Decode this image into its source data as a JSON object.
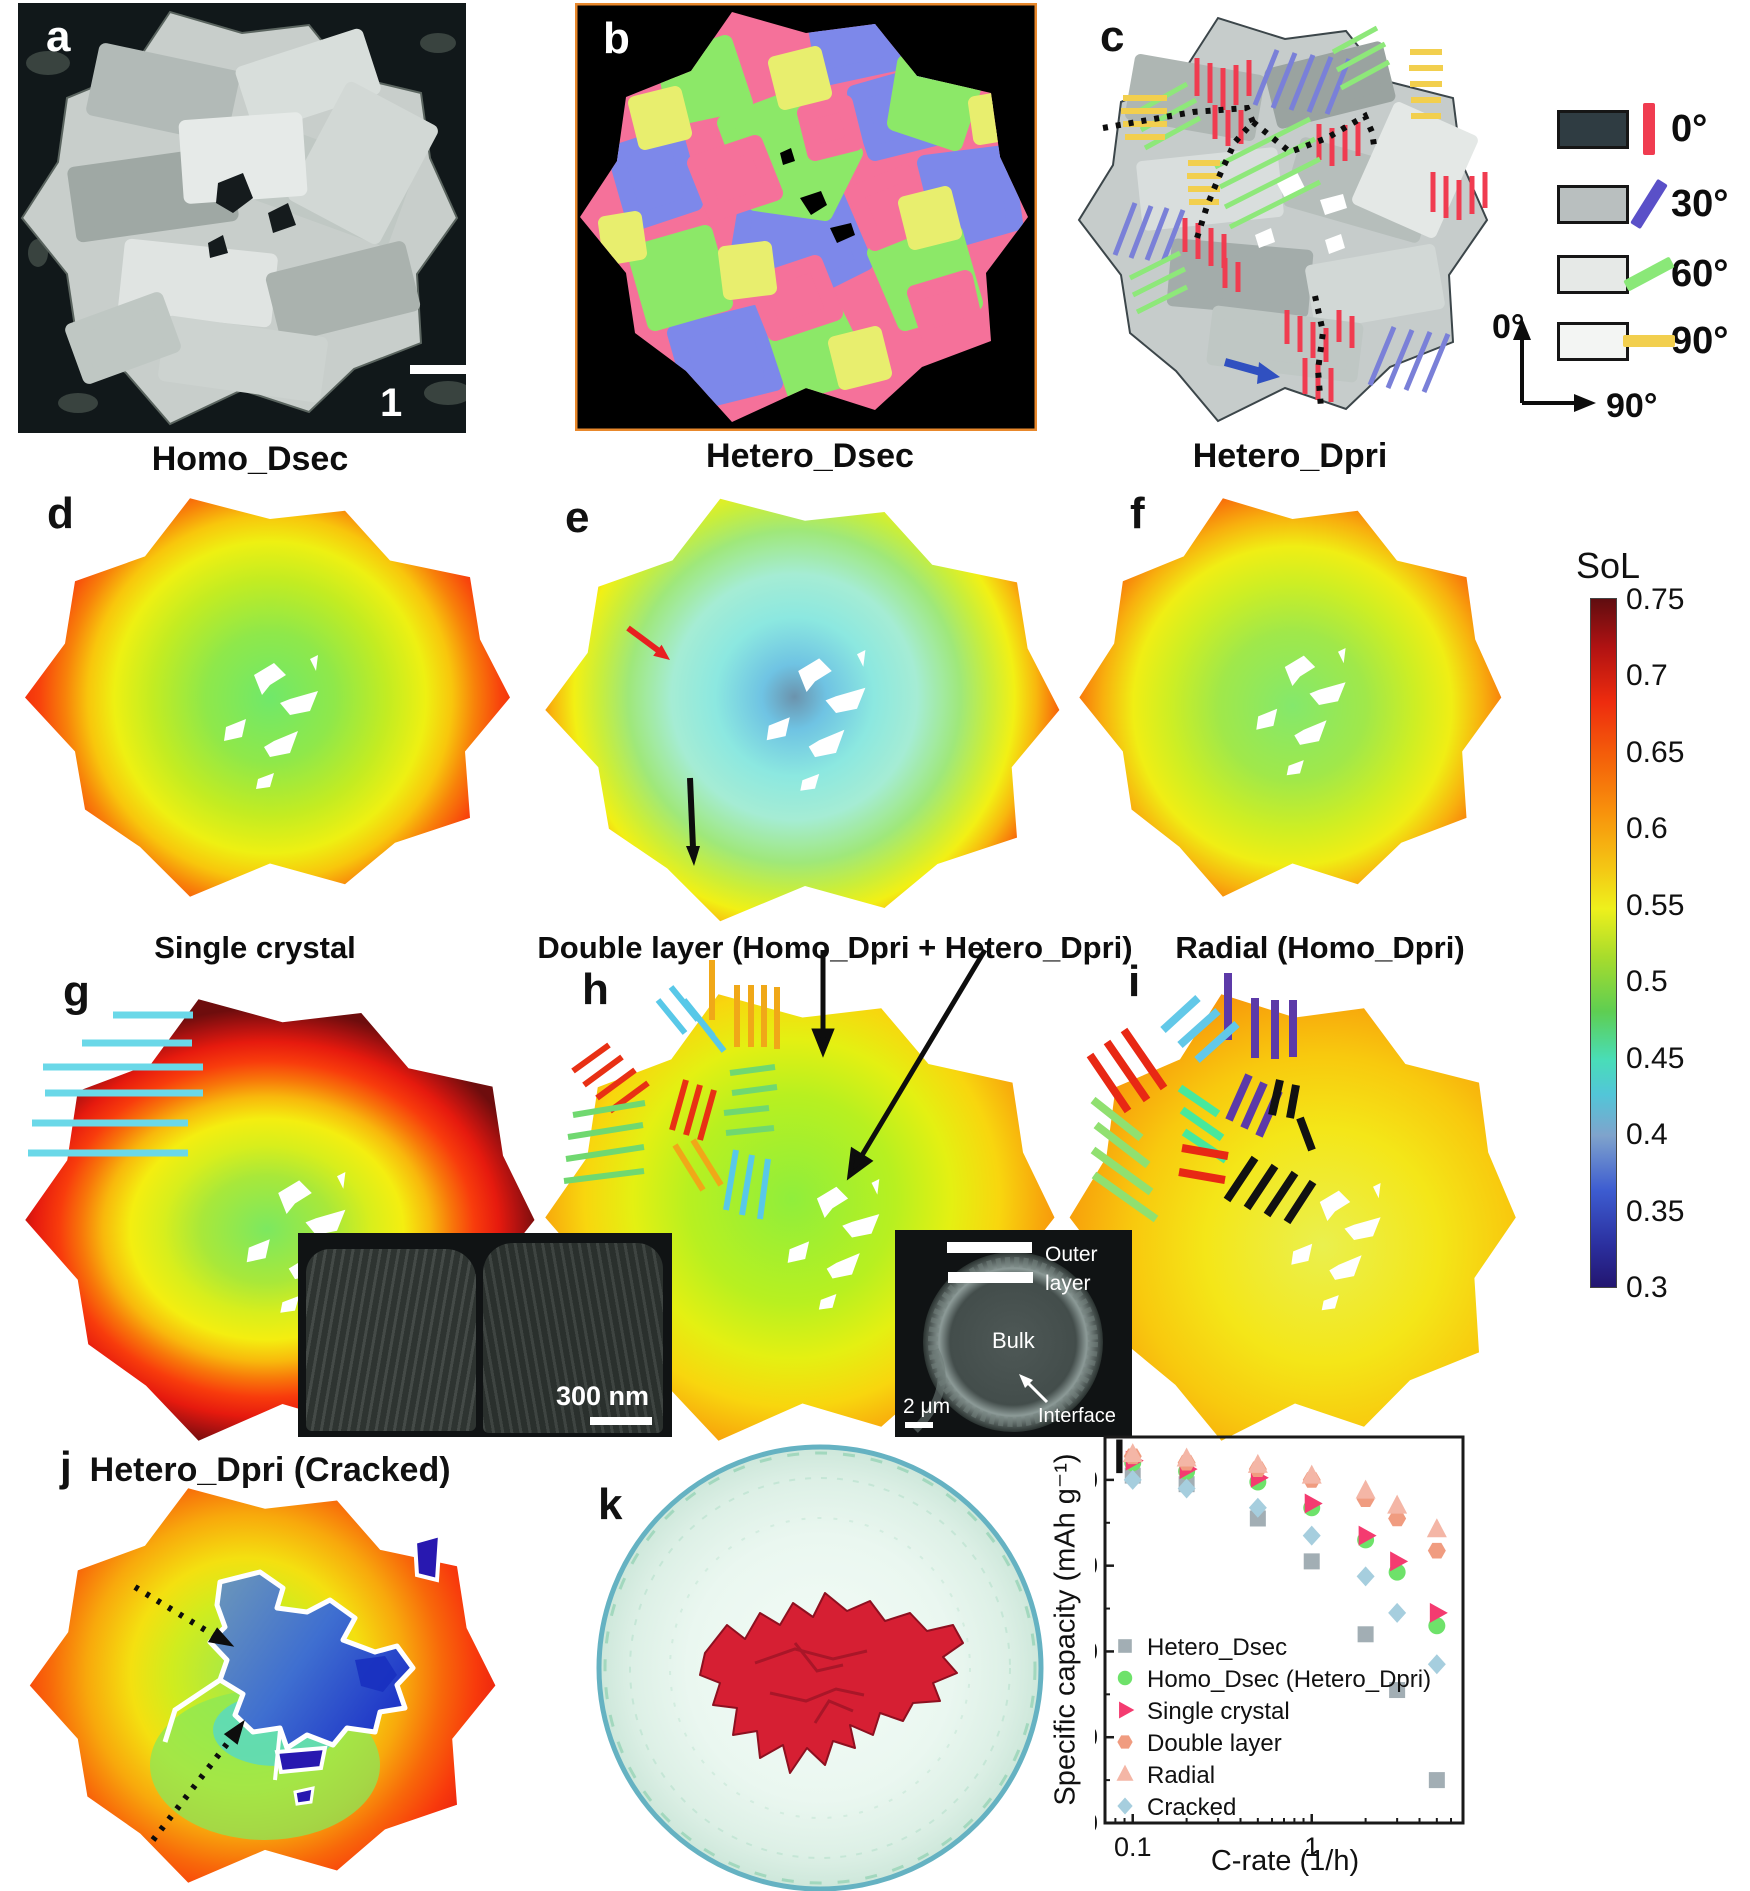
{
  "panels": {
    "a": {
      "letter": "a",
      "scale_bar": "1 μm"
    },
    "b": {
      "letter": "b"
    },
    "c": {
      "letter": "c"
    },
    "d": {
      "letter": "d",
      "label": "Homo_Dsec"
    },
    "e": {
      "letter": "e",
      "label": "Hetero_Dsec"
    },
    "f": {
      "letter": "f",
      "label": "Hetero_Dpri"
    },
    "g": {
      "letter": "g",
      "label": "Single crystal"
    },
    "h": {
      "letter": "h",
      "label": "Double layer (Homo_Dpri + Hetero_Dpri)"
    },
    "i": {
      "letter": "i",
      "label": "Radial (Homo_Dpri)"
    },
    "j": {
      "letter": "j",
      "label": "Hetero_Dpri (Cracked)"
    },
    "k": {
      "letter": "k"
    },
    "l": {
      "letter": "l"
    }
  },
  "orientation_legend": {
    "items": [
      {
        "angle": "0°",
        "bar_color": "#f03c50"
      },
      {
        "angle": "30°",
        "bar_color": "#5a50c8"
      },
      {
        "angle": "60°",
        "bar_color": "#8ae878"
      },
      {
        "angle": "90°",
        "bar_color": "#f2cf4e"
      }
    ],
    "axis": {
      "up_label": "0°",
      "right_label": "90°"
    }
  },
  "colorbar": {
    "title": "SoL",
    "ticks": [
      "0.75",
      "0.7",
      "0.65",
      "0.6",
      "0.55",
      "0.5",
      "0.45",
      "0.4",
      "0.35",
      "0.3"
    ]
  },
  "inset_g": {
    "scale_bar": "300 nm"
  },
  "inset_h": {
    "outer_layer": "Outer layer",
    "bulk": "Bulk",
    "interface": "Interface",
    "scale_bar": "2 μm"
  },
  "chart_data": {
    "type": "scatter",
    "title": "",
    "xlabel": "C-rate (1/h)",
    "ylabel": "Specific capacity (mAh g⁻¹)",
    "x_scale": "log",
    "xlim": [
      0.07,
      7
    ],
    "ylim": [
      100,
      190
    ],
    "yticks": [
      100,
      120,
      140,
      160,
      180
    ],
    "xticks_labeled": [
      0.1,
      1
    ],
    "xticks_minor": [
      0.08,
      0.09,
      0.2,
      0.3,
      0.4,
      0.5,
      0.6,
      0.7,
      0.8,
      0.9,
      2,
      3,
      4,
      5,
      6
    ],
    "grid": false,
    "legend_position": "lower-left",
    "x": [
      0.1,
      0.2,
      0.5,
      1,
      2,
      3,
      5
    ],
    "series": [
      {
        "name": "Hetero_Dsec",
        "marker": "square",
        "color": "#a2aeb4",
        "values": [
          181,
          179,
          171,
          161,
          144,
          131,
          110
        ]
      },
      {
        "name": "Homo_Dsec (Hetero_Dpri)",
        "marker": "circle",
        "color": "#6ee26a",
        "values": [
          184,
          182,
          179.5,
          173.5,
          166,
          158.5,
          146
        ]
      },
      {
        "name": "Single crystal",
        "marker": "triangle-right",
        "color": "#f43b70",
        "values": [
          184.5,
          182.5,
          180.5,
          174.5,
          167,
          161,
          149
        ]
      },
      {
        "name": "Double layer",
        "marker": "hexagon",
        "color": "#f09c80",
        "values": [
          185.5,
          184,
          182.5,
          180,
          175.5,
          171,
          163.5
        ]
      },
      {
        "name": "Radial",
        "marker": "triangle-up",
        "color": "#f4b6a6",
        "values": [
          186,
          185,
          183.5,
          181,
          177.5,
          174,
          168.5
        ]
      },
      {
        "name": "Cracked",
        "marker": "diamond",
        "color": "#a6cede",
        "values": [
          180,
          178,
          173.5,
          167,
          157.5,
          149,
          137
        ]
      }
    ]
  }
}
